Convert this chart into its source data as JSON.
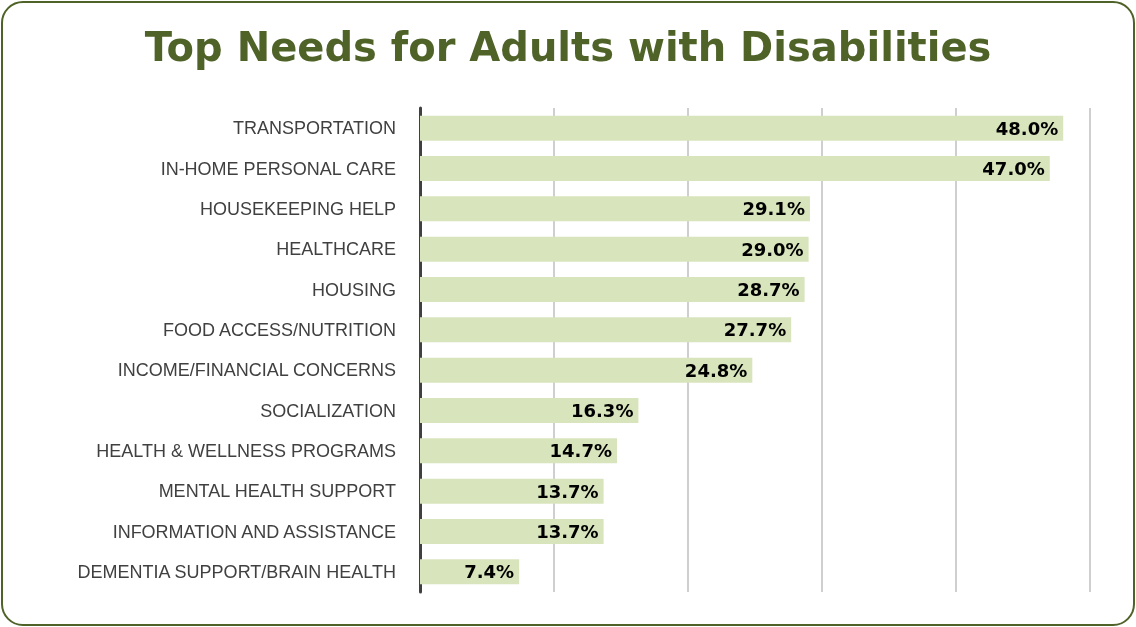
{
  "chart_data": {
    "type": "bar",
    "orientation": "horizontal",
    "title": "Top Needs for Adults with Disabilities",
    "categories": [
      "TRANSPORTATION",
      "IN-HOME PERSONAL CARE",
      "HOUSEKEEPING HELP",
      "HEALTHCARE",
      "HOUSING",
      "FOOD ACCESS/NUTRITION",
      "INCOME/FINANCIAL CONCERNS",
      "SOCIALIZATION",
      "HEALTH & WELLNESS PROGRAMS",
      "MENTAL HEALTH SUPPORT",
      "INFORMATION AND ASSISTANCE",
      "DEMENTIA SUPPORT/BRAIN HEALTH"
    ],
    "values": [
      48.0,
      47.0,
      29.1,
      29.0,
      28.7,
      27.7,
      24.8,
      16.3,
      14.7,
      13.7,
      13.7,
      7.4
    ],
    "value_labels": [
      "48.0%",
      "47.0%",
      "29.1%",
      "29.0%",
      "28.7%",
      "27.7%",
      "24.8%",
      "16.3%",
      "14.7%",
      "13.7%",
      "13.7%",
      "7.4%"
    ],
    "color": "#d8e4bc",
    "xlim": [
      0,
      50
    ],
    "xticks": [
      {
        "value": 0,
        "label": null
      },
      {
        "value": 10,
        "label": null
      },
      {
        "value": 20,
        "label": null
      },
      {
        "value": 30,
        "label": null
      },
      {
        "value": 40,
        "label": null
      },
      {
        "value": 50,
        "label": null
      }
    ],
    "grid": "x",
    "tick_labels": "y"
  }
}
